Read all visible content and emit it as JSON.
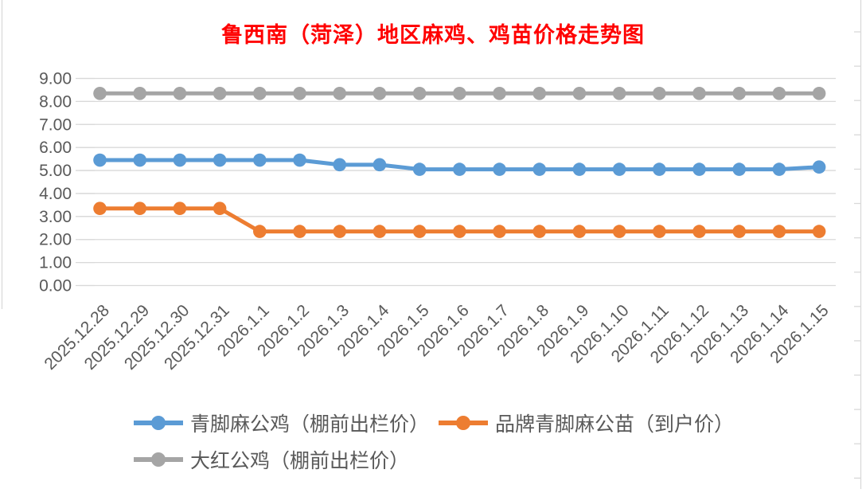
{
  "title": "鲁西南（菏泽）地区麻鸡、鸡苗价格走势图",
  "colors": {
    "title": "#FF0000",
    "axis_text": "#595959",
    "gridline": "#D9D9D9",
    "sheet_edge": "#D9D9D9",
    "series_blue": "#5B9BD5",
    "series_orange": "#ED7D31",
    "series_gray": "#A5A5A5"
  },
  "chart_data": {
    "type": "line",
    "title": "鲁西南（菏泽）地区麻鸡、鸡苗价格走势图",
    "categories": [
      "2025.12.28",
      "2025.12.29",
      "2025.12.30",
      "2025.12.31",
      "2026.1.1",
      "2026.1.2",
      "2026.1.3",
      "2026.1.4",
      "2026.1.5",
      "2026.1.6",
      "2026.1.7",
      "2026.1.8",
      "2026.1.9",
      "2026.1.10",
      "2026.1.11",
      "2026.1.12",
      "2026.1.13",
      "2026.1.14",
      "2026.1.15"
    ],
    "series": [
      {
        "name": "青脚麻公鸡（棚前出栏价）",
        "color": "#5B9BD5",
        "values": [
          5.45,
          5.45,
          5.45,
          5.45,
          5.45,
          5.45,
          5.25,
          5.25,
          5.05,
          5.05,
          5.05,
          5.05,
          5.05,
          5.05,
          5.05,
          5.05,
          5.05,
          5.05,
          5.15
        ]
      },
      {
        "name": "品牌青脚麻公苗（到户价）",
        "color": "#ED7D31",
        "values": [
          3.35,
          3.35,
          3.35,
          3.35,
          2.35,
          2.35,
          2.35,
          2.35,
          2.35,
          2.35,
          2.35,
          2.35,
          2.35,
          2.35,
          2.35,
          2.35,
          2.35,
          2.35,
          2.35
        ]
      },
      {
        "name": "大红公鸡（棚前出栏价）",
        "color": "#A5A5A5",
        "values": [
          8.35,
          8.35,
          8.35,
          8.35,
          8.35,
          8.35,
          8.35,
          8.35,
          8.35,
          8.35,
          8.35,
          8.35,
          8.35,
          8.35,
          8.35,
          8.35,
          8.35,
          8.35,
          8.35
        ]
      }
    ],
    "ylim": [
      0,
      9
    ],
    "ytick_step": 1,
    "ytick_labels": [
      "0.00",
      "1.00",
      "2.00",
      "3.00",
      "4.00",
      "5.00",
      "6.00",
      "7.00",
      "8.00",
      "9.00"
    ],
    "xlabel": "",
    "ylabel": "",
    "grid": true,
    "x_label_rotation": 45,
    "legend_position": "bottom",
    "marker": "circle"
  },
  "legend": {
    "rows": 2,
    "items": [
      {
        "label": "青脚麻公鸡（棚前出栏价）"
      },
      {
        "label": "品牌青脚麻公苗（到户价）"
      },
      {
        "label": "大红公鸡（棚前出栏价）"
      }
    ]
  }
}
